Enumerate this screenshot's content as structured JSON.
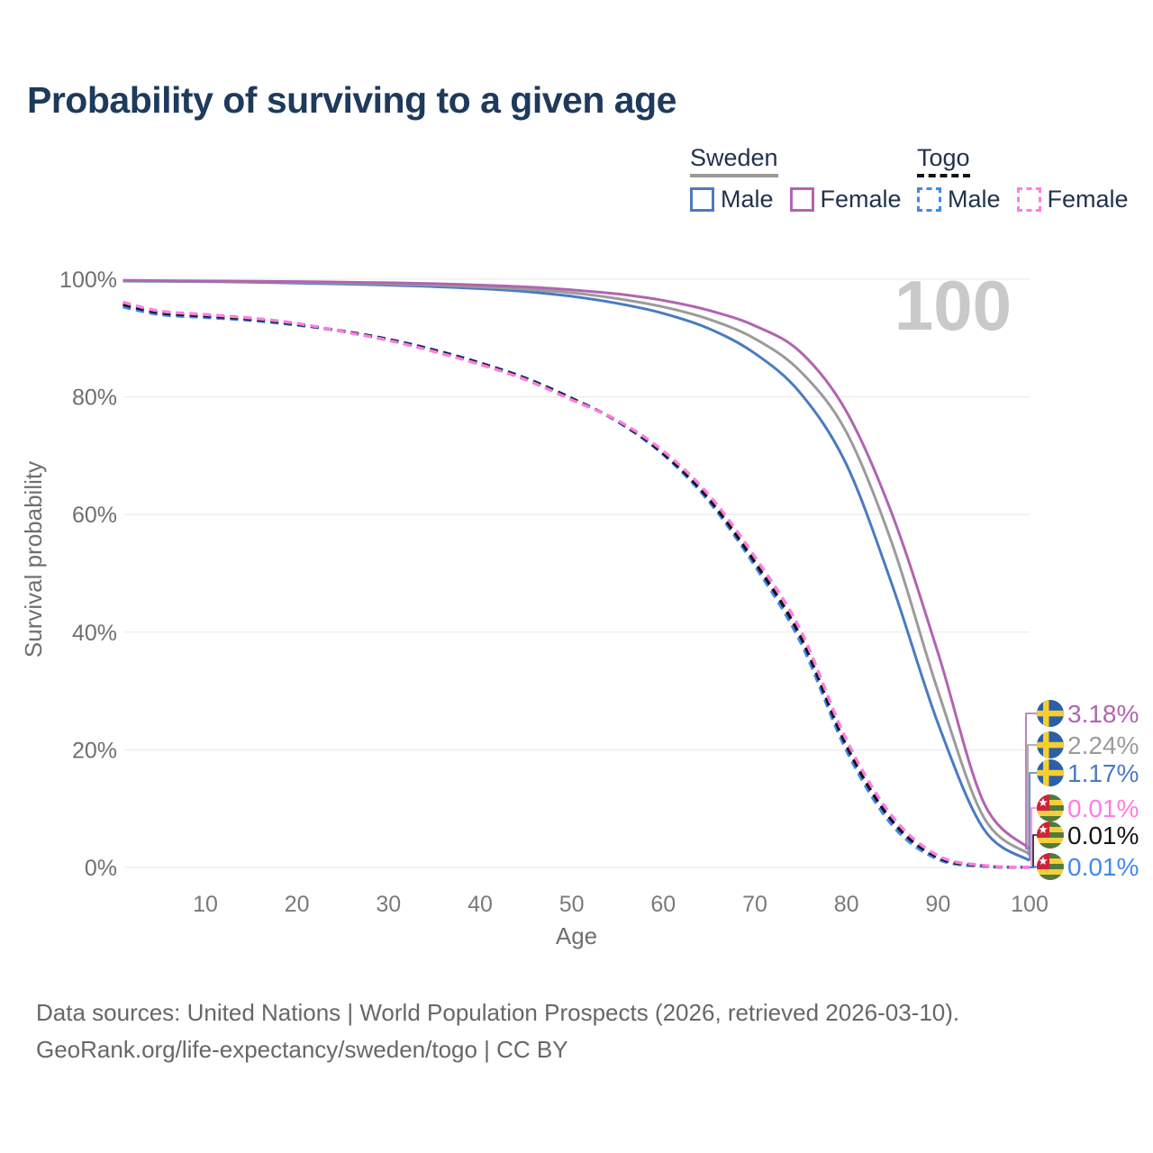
{
  "title": "Probability of surviving to a given age",
  "legend": {
    "groups": [
      {
        "name": "Sweden",
        "line_style": "solid",
        "underline_color": "#9a9a9a",
        "items": [
          {
            "label": "Male",
            "color": "#4a7ac2"
          },
          {
            "label": "Female",
            "color": "#b164b1"
          }
        ]
      },
      {
        "name": "Togo",
        "line_style": "dashed",
        "underline_color": "#141414",
        "items": [
          {
            "label": "Male",
            "color": "#3f87f5"
          },
          {
            "label": "Female",
            "color": "#ff7ce1"
          }
        ]
      }
    ]
  },
  "chart_data": {
    "type": "line",
    "title": "Probability of surviving to a given age",
    "xlabel": "Age",
    "ylabel": "Survival probability",
    "xlim": [
      0,
      100
    ],
    "ylim": [
      0,
      100
    ],
    "grid": "horizontal",
    "watermark": "100",
    "x_tick_values": [
      10,
      20,
      30,
      40,
      50,
      60,
      70,
      80,
      90,
      100
    ],
    "x_tick_labels": [
      "10",
      "20",
      "30",
      "40",
      "50",
      "60",
      "70",
      "80",
      "90",
      "100"
    ],
    "y_tick_values": [
      100,
      80,
      60,
      40,
      20,
      0
    ],
    "y_tick_labels": [
      "100%",
      "80%",
      "60%",
      "40%",
      "20%",
      "0%"
    ],
    "ages": [
      1,
      5,
      10,
      15,
      20,
      25,
      30,
      35,
      40,
      45,
      50,
      55,
      60,
      65,
      70,
      75,
      80,
      85,
      90,
      95,
      100
    ],
    "series": [
      {
        "id": "sweden-female",
        "name": "Sweden Female",
        "country": "Sweden",
        "sex": "Female",
        "color": "#b164b1",
        "dash": false,
        "flag": "sweden",
        "end_label": "3.18%",
        "values": [
          99.8,
          99.75,
          99.7,
          99.65,
          99.6,
          99.5,
          99.4,
          99.25,
          99.0,
          98.7,
          98.2,
          97.5,
          96.4,
          94.7,
          92.1,
          87.6,
          77.5,
          60.0,
          36.5,
          11.0,
          3.18
        ]
      },
      {
        "id": "sweden-total",
        "name": "Sweden Both sexes",
        "country": "Sweden",
        "sex": "Both",
        "color": "#9b9b9b",
        "dash": false,
        "flag": "sweden",
        "end_label": "2.24%",
        "values": [
          99.75,
          99.7,
          99.65,
          99.6,
          99.5,
          99.35,
          99.2,
          99.0,
          98.7,
          98.3,
          97.7,
          96.7,
          95.3,
          93.2,
          89.9,
          84.3,
          74.0,
          55.0,
          30.0,
          8.5,
          2.24
        ]
      },
      {
        "id": "sweden-male",
        "name": "Sweden Male",
        "country": "Sweden",
        "sex": "Male",
        "color": "#4a7ac2",
        "dash": false,
        "flag": "sweden",
        "end_label": "1.17%",
        "values": [
          99.7,
          99.65,
          99.6,
          99.5,
          99.35,
          99.2,
          99.0,
          98.75,
          98.4,
          97.9,
          97.1,
          95.9,
          94.2,
          91.6,
          87.4,
          80.6,
          68.5,
          48.0,
          24.5,
          6.5,
          1.17
        ]
      },
      {
        "id": "togo-female",
        "name": "Togo Female",
        "country": "Togo",
        "sex": "Female",
        "color": "#ff7ce1",
        "dash": true,
        "flag": "togo",
        "end_label": "0.01%",
        "values": [
          96.1,
          94.6,
          94.0,
          93.4,
          92.5,
          91.1,
          89.6,
          87.7,
          85.5,
          82.9,
          79.5,
          76.0,
          70.8,
          63.3,
          52.8,
          40.3,
          21.7,
          8.7,
          2.0,
          0.33,
          0.01
        ]
      },
      {
        "id": "togo-total",
        "name": "Togo Both sexes",
        "country": "Togo",
        "sex": "Both",
        "color": "#151515",
        "dash": true,
        "flag": "togo",
        "end_label": "0.01%",
        "values": [
          95.7,
          94.3,
          93.75,
          93.2,
          92.35,
          91.15,
          89.75,
          87.9,
          85.7,
          83.1,
          79.7,
          75.9,
          70.4,
          62.6,
          51.9,
          39.2,
          20.7,
          7.9,
          1.7,
          0.27,
          0.01
        ]
      },
      {
        "id": "togo-male",
        "name": "Togo Male",
        "country": "Togo",
        "sex": "Male",
        "color": "#3f87f5",
        "dash": true,
        "flag": "togo",
        "end_label": "0.01%",
        "values": [
          95.3,
          94.0,
          93.5,
          93.0,
          92.2,
          91.2,
          89.8,
          88.0,
          85.8,
          83.2,
          79.8,
          75.8,
          70.2,
          62.2,
          51.3,
          38.3,
          19.9,
          7.2,
          1.4,
          0.2,
          0.01
        ]
      }
    ]
  },
  "footer": {
    "line1": "Data sources: United Nations | World Population Prospects (2026, retrieved 2026-03-10).",
    "line2": "GeoRank.org/life-expectancy/sweden/togo | CC BY"
  }
}
